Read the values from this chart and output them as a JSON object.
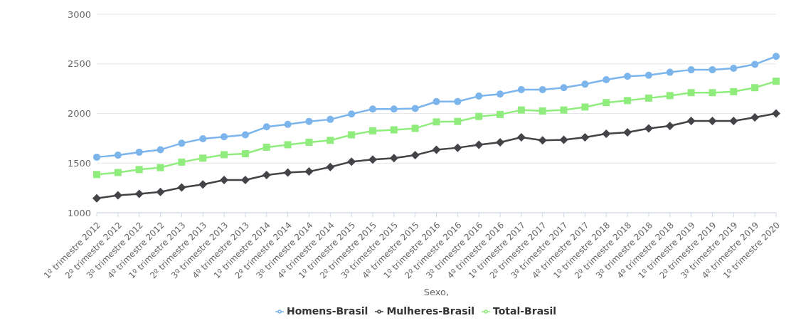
{
  "chart_data": {
    "type": "line",
    "categories": [
      "1º trimestre 2012",
      "2º trimestre 2012",
      "3º trimestre 2012",
      "4º trimestre 2012",
      "1º trimestre 2013",
      "2º trimestre 2013",
      "3º trimestre 2013",
      "4º trimestre 2013",
      "1º trimestre 2014",
      "2º trimestre 2014",
      "3º trimestre 2014",
      "4º trimestre 2014",
      "1º trimestre 2015",
      "2º trimestre 2015",
      "3º trimestre 2015",
      "4º trimestre 2015",
      "1º trimestre 2016",
      "2º trimestre 2016",
      "3º trimestre 2016",
      "4º trimestre 2016",
      "1º trimestre 2017",
      "2º trimestre 2017",
      "3º trimestre 2017",
      "4º trimestre 2017",
      "1º trimestre 2018",
      "2º trimestre 2018",
      "3º trimestre 2018",
      "4º trimestre 2018",
      "1º trimestre 2019",
      "2º trimestre 2019",
      "3º trimestre 2019",
      "4º trimestre 2019",
      "1º trimestre 2020"
    ],
    "xlabel": "Sexo,",
    "series": [
      {
        "name": "Homens-Brasil",
        "color": "#7cb5ec",
        "marker": "circle",
        "values": [
          1560,
          1580,
          1610,
          1635,
          1700,
          1745,
          1765,
          1785,
          1865,
          1890,
          1920,
          1940,
          1995,
          2045,
          2045,
          2050,
          2120,
          2120,
          2175,
          2195,
          2240,
          2240,
          2260,
          2295,
          2340,
          2375,
          2385,
          2415,
          2440,
          2440,
          2455,
          2495,
          2575
        ]
      },
      {
        "name": "Mulheres-Brasil",
        "color": "#434348",
        "marker": "diamond",
        "values": [
          1145,
          1175,
          1190,
          1210,
          1255,
          1285,
          1330,
          1330,
          1380,
          1405,
          1415,
          1460,
          1515,
          1535,
          1550,
          1580,
          1635,
          1655,
          1685,
          1710,
          1760,
          1730,
          1735,
          1760,
          1795,
          1810,
          1850,
          1875,
          1925,
          1925,
          1925,
          1960,
          2000
        ]
      },
      {
        "name": "Total-Brasil",
        "color": "#90ed7d",
        "marker": "square",
        "values": [
          1385,
          1405,
          1435,
          1455,
          1510,
          1550,
          1585,
          1595,
          1660,
          1685,
          1710,
          1730,
          1785,
          1825,
          1835,
          1850,
          1915,
          1920,
          1970,
          1990,
          2035,
          2025,
          2035,
          2065,
          2110,
          2130,
          2155,
          2180,
          2210,
          2210,
          2220,
          2260,
          2325
        ]
      }
    ],
    "ylim": [
      1000,
      3000
    ],
    "yticks": [
      1000,
      1500,
      2000,
      2500,
      3000
    ],
    "grid": "y",
    "legend": "bottom",
    "line_style": "solid"
  }
}
